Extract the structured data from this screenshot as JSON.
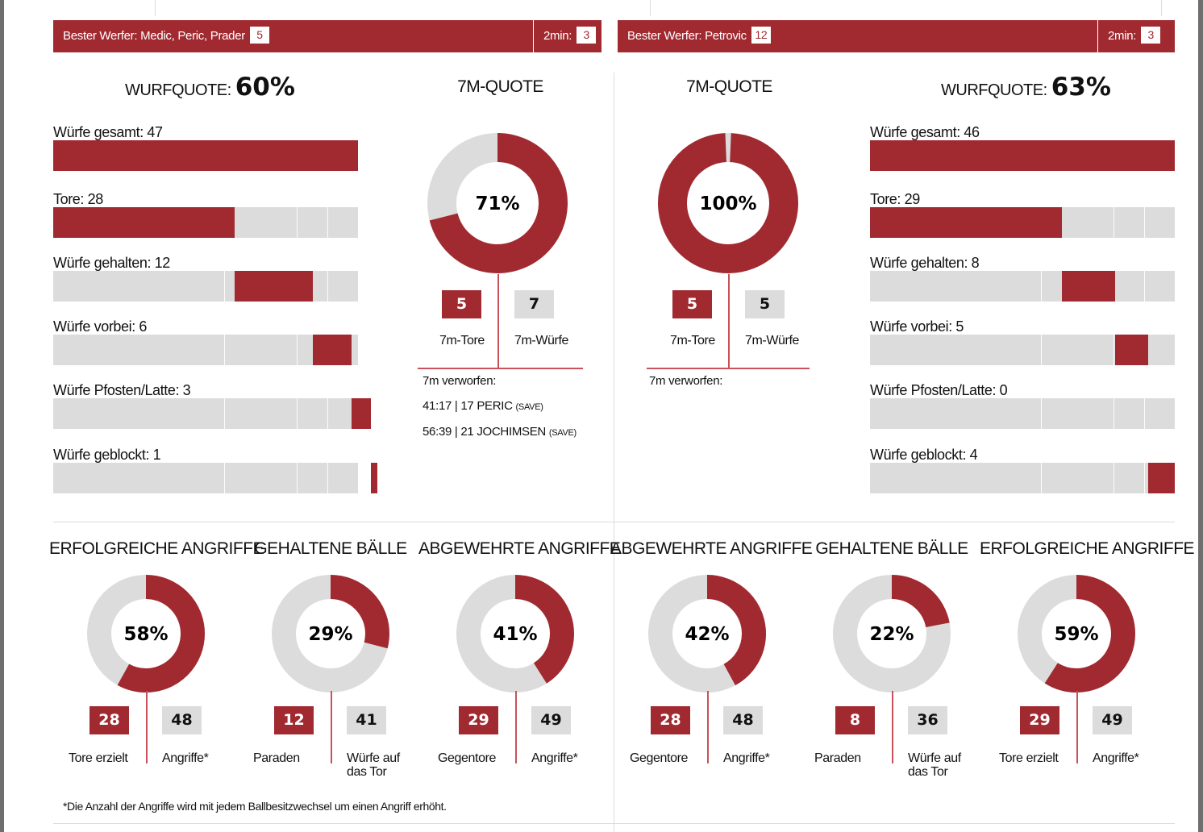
{
  "colors": {
    "accent": "#a12a31",
    "track": "#dcdcdc",
    "text": "#111111"
  },
  "left": {
    "top_bar": {
      "best_label": "Bester Werfer: Medic, Peric, Prader",
      "best_count": "5",
      "penalty_label": "2min:",
      "penalty_count": "3"
    },
    "wurfquote": {
      "label": "WURFQUOTE:",
      "value": "60%"
    },
    "stats": [
      {
        "label": "Würfe gesamt: 47",
        "value": 47
      },
      {
        "label": "Tore: 28",
        "value": 28
      },
      {
        "label": "Würfe gehalten: 12",
        "value": 12
      },
      {
        "label": "Würfe vorbei: 6",
        "value": 6
      },
      {
        "label": "Würfe Pfosten/Latte: 3",
        "value": 3
      },
      {
        "label": "Würfe geblockt: 1",
        "value": 1
      }
    ],
    "seven_m": {
      "title": "7M-QUOTE",
      "percent_label": "71%",
      "fraction": 0.71,
      "goals": "5",
      "goals_label": "7m-Tore",
      "shots": "7",
      "shots_label": "7m-Würfe",
      "missed_title": "7m verworfen:",
      "missed": [
        {
          "text": "41:17 | 17 PERIC",
          "note": "(SAVE)"
        },
        {
          "text": "56:39 | 21 JOCHIMSEN",
          "note": "(SAVE)"
        }
      ]
    },
    "donuts": [
      {
        "title": "ERFOLGREICHE ANGRIFFE",
        "percent_label": "58%",
        "fraction": 0.58,
        "a": "28",
        "a_label": "Tore erzielt",
        "b": "48",
        "b_label": "Angriffe*"
      },
      {
        "title": "GEHALTENE BÄLLE",
        "percent_label": "29%",
        "fraction": 0.29,
        "a": "12",
        "a_label": "Paraden",
        "b": "41",
        "b_label": "Würfe auf das Tor"
      },
      {
        "title": "ABGEWEHRTE ANGRIFFE",
        "percent_label": "41%",
        "fraction": 0.41,
        "a": "29",
        "a_label": "Gegentore",
        "b": "49",
        "b_label": "Angriffe*"
      }
    ],
    "footnote": "*Die Anzahl der Angriffe wird mit jedem Ballbesitzwechsel um einen Angriff erhöht."
  },
  "right": {
    "top_bar": {
      "best_label": "Bester Werfer: Petrovic",
      "best_count": "12",
      "penalty_label": "2min:",
      "penalty_count": "3"
    },
    "wurfquote": {
      "label": "WURFQUOTE:",
      "value": "63%"
    },
    "stats": [
      {
        "label": "Würfe gesamt: 46",
        "value": 46
      },
      {
        "label": "Tore: 29",
        "value": 29
      },
      {
        "label": "Würfe gehalten: 8",
        "value": 8
      },
      {
        "label": "Würfe vorbei: 5",
        "value": 5
      },
      {
        "label": "Würfe Pfosten/Latte: 0",
        "value": 0
      },
      {
        "label": "Würfe geblockt: 4",
        "value": 4
      }
    ],
    "seven_m": {
      "title": "7M-QUOTE",
      "percent_label": "100%",
      "fraction": 1.0,
      "goals": "5",
      "goals_label": "7m-Tore",
      "shots": "5",
      "shots_label": "7m-Würfe",
      "missed_title": "7m verworfen:",
      "missed": []
    },
    "donuts": [
      {
        "title": "ABGEWEHRTE ANGRIFFE",
        "percent_label": "42%",
        "fraction": 0.42,
        "a": "28",
        "a_label": "Gegentore",
        "b": "48",
        "b_label": "Angriffe*"
      },
      {
        "title": "GEHALTENE BÄLLE",
        "percent_label": "22%",
        "fraction": 0.22,
        "a": "8",
        "a_label": "Paraden",
        "b": "36",
        "b_label": "Würfe auf das Tor"
      },
      {
        "title": "ERFOLGREICHE ANGRIFFE",
        "percent_label": "59%",
        "fraction": 0.59,
        "a": "29",
        "a_label": "Tore erzielt",
        "b": "49",
        "b_label": "Angriffe*"
      }
    ]
  }
}
